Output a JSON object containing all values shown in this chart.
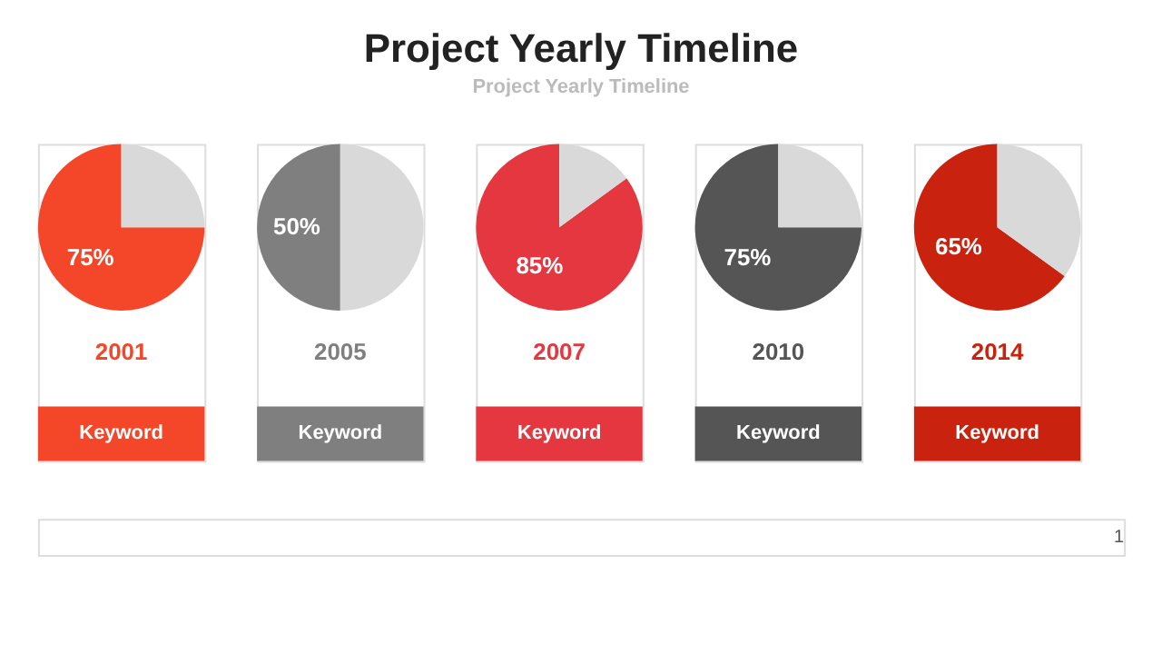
{
  "chart_data": [
    {
      "type": "other",
      "title": "Project Yearly Timeline",
      "subtitle": "Project Yearly Timeline",
      "annotations": [
        "1"
      ]
    },
    {
      "type": "pie",
      "title": "2001",
      "categories": [
        null,
        null
      ],
      "values": [
        75,
        25
      ],
      "colors": [
        "#f4472a",
        "#d9d9d9"
      ],
      "value_labels": [
        "75%",
        null
      ],
      "annotations": [
        "Keyword"
      ]
    },
    {
      "type": "pie",
      "title": "2005",
      "categories": [
        null,
        null
      ],
      "values": [
        50,
        50
      ],
      "colors": [
        "#7f7f7f",
        "#d9d9d9"
      ],
      "value_labels": [
        "50%",
        null
      ],
      "annotations": [
        "Keyword"
      ]
    },
    {
      "type": "pie",
      "title": "2007",
      "categories": [
        null,
        null
      ],
      "values": [
        85,
        15
      ],
      "colors": [
        "#e5373f",
        "#d9d9d9"
      ],
      "value_labels": [
        "85%",
        null
      ],
      "annotations": [
        "Keyword"
      ]
    },
    {
      "type": "pie",
      "title": "2010",
      "categories": [
        null,
        null
      ],
      "values": [
        75,
        25
      ],
      "colors": [
        "#555555",
        "#d9d9d9"
      ],
      "value_labels": [
        "75%",
        null
      ],
      "annotations": [
        "Keyword"
      ]
    },
    {
      "type": "pie",
      "title": "2014",
      "categories": [
        null,
        null
      ],
      "values": [
        65,
        35
      ],
      "colors": [
        "#c9220e",
        "#d9d9d9"
      ],
      "value_labels": [
        "65%",
        null
      ],
      "annotations": [
        "Keyword"
      ]
    }
  ]
}
